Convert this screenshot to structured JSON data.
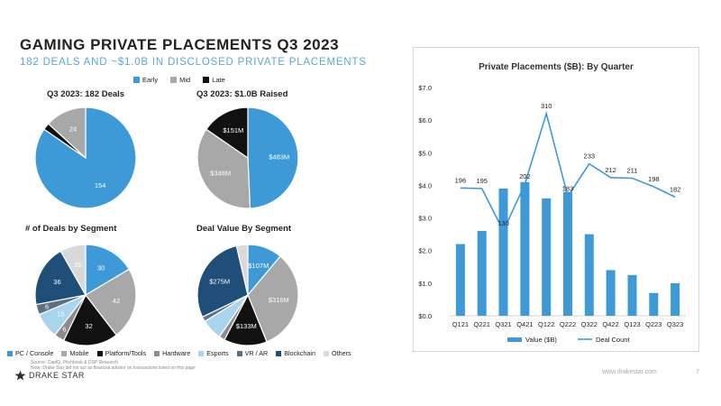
{
  "slide": {
    "title": "GAMING PRIVATE PLACEMENTS Q3 2023",
    "subtitle": "182 DEALS AND ~$1.0B IN DISCLOSED PRIVATE PLACEMENTS",
    "source_line1": "Source: CapIQ, Pitchbook & DSP Research",
    "source_line2": "Note: Drake Star did not act as financial advisor on transactions listed on this page",
    "logo_text": "DRAKE STAR",
    "website": "www.drakestar.com",
    "page_number": "7"
  },
  "colors": {
    "blue": "#3d9ad6",
    "gray": "#a8a8a8",
    "black": "#111111",
    "lightgray": "#d9d9d9",
    "navy": "#1f4e79",
    "lightblue": "#a9d4ee",
    "slate": "#5e6f80",
    "darkblue": "#1b3a5c"
  },
  "stage_legend": [
    {
      "label": "Early",
      "color": "#3d9ad6"
    },
    {
      "label": "Mid",
      "color": "#a8a8a8"
    },
    {
      "label": "Late",
      "color": "#111111"
    }
  ],
  "segment_legend": [
    {
      "label": "PC / Console",
      "color": "#3d9ad6"
    },
    {
      "label": "Mobile",
      "color": "#a8a8a8"
    },
    {
      "label": "Platform/Tools",
      "color": "#111111"
    },
    {
      "label": "Hardware",
      "color": "#8c8c8c"
    },
    {
      "label": "Esports",
      "color": "#a9d4ee"
    },
    {
      "label": "VR / AR",
      "color": "#5e6f80"
    },
    {
      "label": "Blockchain",
      "color": "#1f4e79"
    },
    {
      "label": "Others",
      "color": "#d9d9d9"
    }
  ],
  "chart_data": [
    {
      "type": "pie",
      "title": "Q3 2023: 182 Deals",
      "slices": [
        {
          "label": "154",
          "value": 154,
          "color": "#3d9ad6"
        },
        {
          "label": "",
          "value": 4,
          "color": "#111111"
        },
        {
          "label": "24",
          "value": 24,
          "color": "#a8a8a8"
        }
      ]
    },
    {
      "type": "pie",
      "title": "Q3 2023: $1.0B Raised",
      "slices": [
        {
          "label": "$483M",
          "value": 483,
          "color": "#3d9ad6"
        },
        {
          "label": "$346M",
          "value": 346,
          "color": "#a8a8a8"
        },
        {
          "label": "$151M",
          "value": 151,
          "color": "#111111"
        }
      ]
    },
    {
      "type": "pie",
      "title": "# of Deals by Segment",
      "slices": [
        {
          "label": "30",
          "value": 30,
          "color": "#3d9ad6"
        },
        {
          "label": "42",
          "value": 42,
          "color": "#a8a8a8"
        },
        {
          "label": "32",
          "value": 32,
          "color": "#111111"
        },
        {
          "label": "6",
          "value": 6,
          "color": "#8c8c8c"
        },
        {
          "label": "15",
          "value": 15,
          "color": "#a9d4ee"
        },
        {
          "label": "6",
          "value": 6,
          "color": "#5e6f80"
        },
        {
          "label": "36",
          "value": 36,
          "color": "#1f4e79"
        },
        {
          "label": "15",
          "value": 15,
          "color": "#d9d9d9"
        }
      ]
    },
    {
      "type": "pie",
      "title": "Deal Value By Segment",
      "slices": [
        {
          "label": "$107M",
          "value": 107,
          "color": "#3d9ad6"
        },
        {
          "label": "$316M",
          "value": 316,
          "color": "#a8a8a8"
        },
        {
          "label": "$133M",
          "value": 133,
          "color": "#111111"
        },
        {
          "label": "",
          "value": 18,
          "color": "#8c8c8c"
        },
        {
          "label": "",
          "value": 65,
          "color": "#a9d4ee"
        },
        {
          "label": "",
          "value": 15,
          "color": "#5e6f80"
        },
        {
          "label": "$275M",
          "value": 275,
          "color": "#1f4e79"
        },
        {
          "label": "",
          "value": 35,
          "color": "#d9d9d9"
        }
      ]
    },
    {
      "type": "bar",
      "title": "Private Placements ($B): By Quarter",
      "categories": [
        "Q121",
        "Q221",
        "Q321",
        "Q421",
        "Q122",
        "Q222",
        "Q322",
        "Q422",
        "Q123",
        "Q223",
        "Q323"
      ],
      "series": [
        {
          "name": "Value ($B)",
          "type": "bar",
          "values": [
            2.2,
            2.6,
            3.9,
            4.1,
            3.6,
            3.8,
            2.5,
            1.4,
            1.25,
            0.7,
            1.0
          ],
          "color": "#3d9ad6"
        },
        {
          "name": "Deal Count",
          "type": "line",
          "values": [
            196,
            195,
            130,
            202,
            310,
            183,
            233,
            212,
            211,
            198,
            182
          ],
          "color": "#3d9ad6"
        }
      ],
      "y_ticks": [
        "$0.0",
        "$1.0",
        "$2.0",
        "$3.0",
        "$4.0",
        "$5.0",
        "$6.0",
        "$7.0"
      ],
      "ylim": [
        0,
        7
      ],
      "legend_position": "bottom"
    }
  ]
}
